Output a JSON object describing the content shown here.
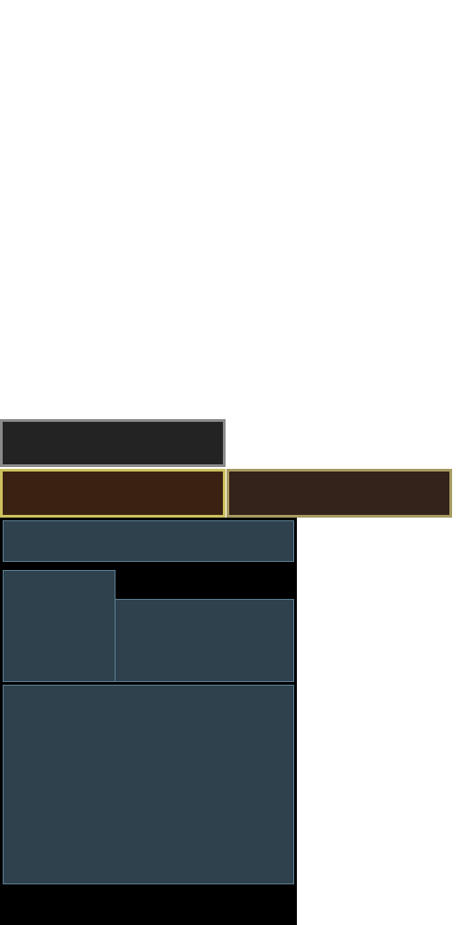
{
  "colors": {
    "page_background": "#ffffff",
    "dark_bar_fill": "#232323",
    "dark_bar_border": "#8a8a8a",
    "tab_active_fill": "#3a2212",
    "tab_inactive_fill": "#33231a",
    "tab_border": "#b7ab63",
    "panel_background": "#000000",
    "slate_fill": "#2e414d",
    "slate_border": "#5d7f93"
  }
}
